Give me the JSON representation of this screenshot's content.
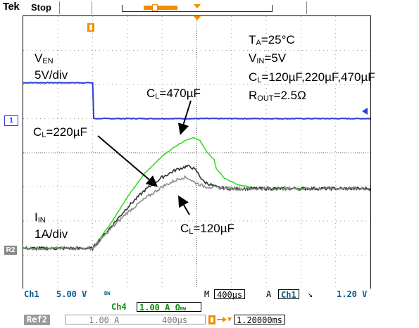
{
  "header": {
    "brand": "Tek",
    "run_state": "Stop"
  },
  "annotations": {
    "ta": "TA=25°C",
    "ta_main": "T",
    "ta_sub": "A",
    "ta_rest": "=25°C",
    "vin_main": "V",
    "vin_sub": "IN",
    "vin_rest": "=5V",
    "cl_main": "C",
    "cl_sub": "L",
    "cl_rest": "=120µF,220µF,470µF",
    "rout_main": "R",
    "rout_sub": "OUT",
    "rout_rest": "=2.5Ω",
    "ven_main": "V",
    "ven_sub": "EN",
    "ven_scale": "5V/div",
    "iin_main": "I",
    "iin_sub": "IN",
    "iin_scale": "1A/div",
    "c470_main": "C",
    "c470_sub": "L",
    "c470_rest": "=470µF",
    "c220_main": "C",
    "c220_sub": "L",
    "c220_rest": "=220µF",
    "c120_main": "C",
    "c120_sub": "L",
    "c120_rest": "=120µF"
  },
  "markers": {
    "ch1": "1",
    "ref2": "R2"
  },
  "status": {
    "ch1_label": "Ch1",
    "ch1_scale": "5.00 V",
    "bw": "BW",
    "m_label": "M",
    "timebase": "400µs",
    "a_label": "A",
    "trig_src": "Ch1",
    "trig_slope": "↘",
    "trig_level": "1.20 V",
    "ch4_label": "Ch4",
    "ch4_scale": "1.00 A Ω",
    "ch4_bw": "BW",
    "ref2_label": "Ref2",
    "ref2_scale": "1.00 A",
    "ref2_time": "400µs",
    "trig_pos": "1.20000ms"
  },
  "colors": {
    "ven": "#2a3fd8",
    "c470": "#33dd22",
    "c220": "#303030",
    "c120": "#8a8a8a",
    "trigger": "#f28c00"
  },
  "chart_data": {
    "type": "line",
    "x_units": "div",
    "xlim": [
      0,
      10
    ],
    "ylim": [
      -4,
      4
    ],
    "grid": true,
    "series": [
      {
        "name": "VEN",
        "color": "#2a3fd8",
        "x": [
          0,
          2.0,
          2.02,
          10
        ],
        "y": [
          2.05,
          2.05,
          1.0,
          1.0
        ]
      },
      {
        "name": "CL=470µF",
        "color": "#33dd22",
        "x": [
          0,
          2.0,
          2.5,
          3.0,
          3.5,
          4.0,
          4.4,
          4.7,
          4.9,
          5.1,
          5.3,
          5.5,
          5.55,
          5.8,
          6.2,
          6.7,
          7.3,
          8.0,
          10
        ],
        "y": [
          -2.8,
          -2.8,
          -2.1,
          -1.3,
          -0.6,
          -0.1,
          0.2,
          0.38,
          0.44,
          0.35,
          0.0,
          -0.2,
          -0.45,
          -0.75,
          -0.95,
          -1.03,
          -1.05,
          -1.05,
          -1.05
        ]
      },
      {
        "name": "CL=220µF",
        "color": "#303030",
        "x": [
          0,
          2.0,
          2.5,
          3.0,
          3.5,
          4.0,
          4.4,
          4.7,
          4.85,
          5.0,
          5.2,
          5.6,
          6.0,
          10
        ],
        "y": [
          -2.8,
          -2.8,
          -2.2,
          -1.6,
          -1.1,
          -0.72,
          -0.5,
          -0.4,
          -0.42,
          -0.55,
          -0.85,
          -1.02,
          -1.05,
          -1.05
        ]
      },
      {
        "name": "CL=120µF",
        "color": "#8a8a8a",
        "x": [
          0,
          2.0,
          2.5,
          3.0,
          3.5,
          4.0,
          4.4,
          4.6,
          4.75,
          4.9,
          5.2,
          5.6,
          6.0,
          10
        ],
        "y": [
          -2.8,
          -2.8,
          -2.25,
          -1.75,
          -1.35,
          -1.0,
          -0.8,
          -0.72,
          -0.74,
          -0.85,
          -0.98,
          -1.03,
          -1.05,
          -1.05
        ]
      }
    ]
  }
}
